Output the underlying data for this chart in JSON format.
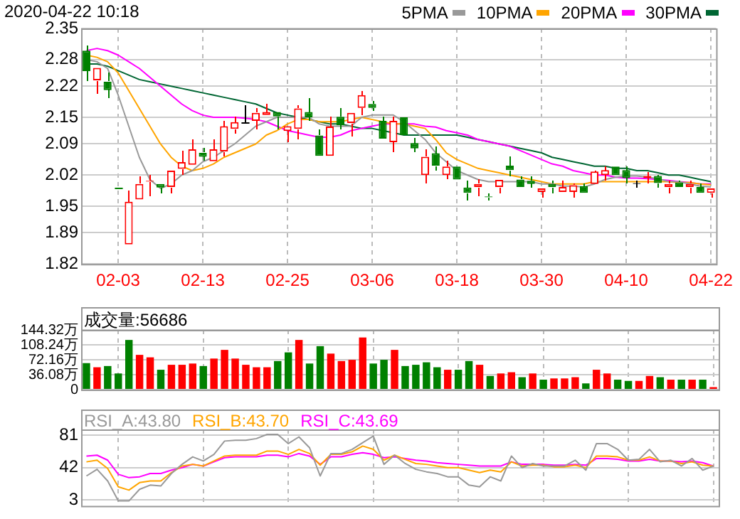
{
  "chart_data": [
    {
      "type": "candlestick",
      "title": "2020-04-22 10:18",
      "categories": [
        null,
        null,
        null,
        "02-03",
        null,
        null,
        null,
        null,
        null,
        null,
        null,
        "02-13",
        null,
        null,
        null,
        null,
        null,
        null,
        null,
        "02-25",
        null,
        null,
        null,
        null,
        null,
        null,
        null,
        "03-06",
        null,
        null,
        null,
        null,
        null,
        null,
        null,
        "03-18",
        null,
        null,
        null,
        null,
        null,
        null,
        null,
        "03-30",
        null,
        null,
        null,
        null,
        null,
        null,
        null,
        "04-10",
        null,
        null,
        null,
        null,
        null,
        null,
        null,
        "04-22"
      ],
      "ohlc": [
        [
          2.3,
          2.31,
          2.233,
          2.254
        ],
        [
          2.233,
          2.261,
          2.203,
          2.261
        ],
        [
          2.23,
          2.25,
          2.193,
          2.211
        ],
        [
          1.992,
          1.992,
          1.992,
          1.992
        ],
        [
          1.864,
          1.985,
          1.864,
          1.96
        ],
        [
          1.965,
          2.018,
          1.965,
          2.0
        ],
        [
          2.005,
          2.02,
          1.973,
          2.007
        ],
        [
          2.0,
          2.0,
          1.98,
          1.992
        ],
        [
          1.993,
          2.03,
          1.98,
          2.03
        ],
        [
          2.034,
          2.076,
          2.02,
          2.049
        ],
        [
          2.043,
          2.1,
          2.043,
          2.078
        ],
        [
          2.07,
          2.08,
          2.051,
          2.061
        ],
        [
          2.051,
          2.1,
          2.051,
          2.078
        ],
        [
          2.073,
          2.142,
          2.063,
          2.13
        ],
        [
          2.124,
          2.152,
          2.112,
          2.139
        ],
        [
          2.139,
          2.178,
          2.139,
          2.139
        ],
        [
          2.142,
          2.17,
          2.124,
          2.16
        ],
        [
          2.155,
          2.18,
          2.155,
          2.162
        ],
        [
          2.162,
          2.162,
          2.122,
          2.152
        ],
        [
          2.119,
          2.13,
          2.094,
          2.13
        ],
        [
          2.124,
          2.178,
          2.1,
          2.17
        ],
        [
          2.162,
          2.193,
          2.142,
          2.15
        ],
        [
          2.109,
          2.124,
          2.063,
          2.063
        ],
        [
          2.063,
          2.15,
          2.063,
          2.129
        ],
        [
          2.151,
          2.17,
          2.122,
          2.132
        ],
        [
          2.137,
          2.16,
          2.107,
          2.16
        ],
        [
          2.171,
          2.21,
          2.155,
          2.2
        ],
        [
          2.18,
          2.188,
          2.163,
          2.171
        ],
        [
          2.142,
          2.15,
          2.102,
          2.102
        ],
        [
          2.094,
          2.15,
          2.071,
          2.142
        ],
        [
          2.15,
          2.152,
          2.11,
          2.11
        ],
        [
          2.092,
          2.102,
          2.071,
          2.08
        ],
        [
          2.02,
          2.078,
          2.002,
          2.061
        ],
        [
          2.069,
          2.085,
          2.03,
          2.041
        ],
        [
          2.02,
          2.051,
          2.01,
          2.039
        ],
        [
          2.039,
          2.04,
          2.01,
          2.01
        ],
        [
          1.992,
          2.009,
          1.963,
          1.98
        ],
        [
          1.993,
          2.01,
          1.973,
          2.0
        ],
        [
          1.972,
          1.98,
          1.963,
          1.97
        ],
        [
          1.993,
          2.009,
          1.98,
          2.009
        ],
        [
          2.041,
          2.061,
          2.016,
          2.031
        ],
        [
          2.01,
          2.018,
          1.993,
          1.993
        ],
        [
          2.007,
          2.018,
          1.993,
          2.0
        ],
        [
          1.982,
          1.993,
          1.97,
          1.99
        ],
        [
          2.0,
          2.009,
          1.98,
          1.993
        ],
        [
          1.982,
          2.009,
          1.982,
          1.993
        ],
        [
          1.982,
          2.0,
          1.97,
          1.997
        ],
        [
          1.995,
          2.0,
          1.98,
          1.98
        ],
        [
          2.0,
          2.03,
          2.0,
          2.028
        ],
        [
          2.02,
          2.039,
          2.009,
          2.031
        ],
        [
          2.039,
          2.041,
          2.02,
          2.02
        ],
        [
          2.031,
          2.039,
          2.002,
          2.013
        ],
        [
          2.002,
          2.009,
          1.993,
          2.0
        ],
        [
          2.013,
          2.028,
          2.0,
          2.018
        ],
        [
          2.018,
          2.02,
          1.992,
          2.002
        ],
        [
          1.993,
          2.009,
          1.98,
          2.0
        ],
        [
          2.003,
          2.009,
          1.993,
          1.993
        ],
        [
          1.993,
          2.009,
          1.98,
          2.0
        ],
        [
          1.993,
          2.0,
          1.98,
          1.98
        ],
        [
          1.98,
          1.993,
          1.97,
          1.99
        ]
      ],
      "colors": [
        "#008000",
        "#ff0000",
        "#008000",
        "#008000",
        "#ff0000",
        "#ff0000",
        "#ff0000",
        "#008000",
        "#ff0000",
        "#ff0000",
        "#ff0000",
        "#008000",
        "#ff0000",
        "#ff0000",
        "#ff0000",
        "#000000",
        "#ff0000",
        "#ff0000",
        "#008000",
        "#ff0000",
        "#ff0000",
        "#008000",
        "#008000",
        "#ff0000",
        "#008000",
        "#ff0000",
        "#ff0000",
        "#008000",
        "#008000",
        "#ff0000",
        "#008000",
        "#008000",
        "#ff0000",
        "#008000",
        "#ff0000",
        "#008000",
        "#008000",
        "#ff0000",
        "#008000",
        "#ff0000",
        "#008000",
        "#008000",
        "#008000",
        "#ff0000",
        "#008000",
        "#ff0000",
        "#ff0000",
        "#008000",
        "#ff0000",
        "#ff0000",
        "#008000",
        "#008000",
        "#000000",
        "#ff0000",
        "#008000",
        "#ff0000",
        "#008000",
        "#ff0000",
        "#008000",
        "#ff0000"
      ],
      "series": [
        {
          "name": "5PMA",
          "type": "line",
          "color": "#999999",
          "values": [
            2.28,
            2.275,
            2.26,
            2.2,
            2.13,
            2.06,
            2.01,
            1.99,
            2.0,
            2.02,
            2.03,
            2.05,
            2.06,
            2.075,
            2.09,
            2.11,
            2.13,
            2.14,
            2.15,
            2.15,
            2.15,
            2.15,
            2.135,
            2.13,
            2.13,
            2.13,
            2.15,
            2.155,
            2.155,
            2.155,
            2.14,
            2.12,
            2.1,
            2.07,
            2.05,
            2.03,
            2.02,
            2.01,
            2.005,
            2.005,
            2.005,
            2.005,
            2.005,
            2.0,
            2.0,
            1.995,
            1.995,
            1.993,
            2.0,
            2.01,
            2.015,
            2.018,
            2.018,
            2.015,
            2.012,
            2.005,
            2.005,
            2.0,
            1.995,
            1.993
          ]
        },
        {
          "name": "10PMA",
          "type": "line",
          "color": "#ffa500",
          "values": [
            2.29,
            2.285,
            2.275,
            2.25,
            2.21,
            2.17,
            2.13,
            2.09,
            2.06,
            2.04,
            2.03,
            2.035,
            2.045,
            2.06,
            2.07,
            2.08,
            2.09,
            2.11,
            2.12,
            2.135,
            2.145,
            2.145,
            2.14,
            2.14,
            2.14,
            2.145,
            2.15,
            2.145,
            2.14,
            2.135,
            2.135,
            2.13,
            2.125,
            2.1,
            2.07,
            2.055,
            2.045,
            2.035,
            2.03,
            2.025,
            2.02,
            2.015,
            2.01,
            2.005,
            2.0,
            2.0,
            2.0,
            2.0,
            2.005,
            2.005,
            2.005,
            2.005,
            2.005,
            2.005,
            2.005,
            2.005,
            2.003,
            2.003,
            2.0,
            1.998
          ]
        },
        {
          "name": "20PMA",
          "type": "line",
          "color": "#ff00ff",
          "values": [
            2.3,
            2.305,
            2.3,
            2.29,
            2.275,
            2.26,
            2.24,
            2.22,
            2.2,
            2.18,
            2.165,
            2.155,
            2.15,
            2.15,
            2.15,
            2.148,
            2.145,
            2.14,
            2.13,
            2.12,
            2.115,
            2.11,
            2.105,
            2.105,
            2.11,
            2.12,
            2.125,
            2.13,
            2.135,
            2.135,
            2.135,
            2.135,
            2.13,
            2.128,
            2.12,
            2.115,
            2.11,
            2.1,
            2.095,
            2.09,
            2.085,
            2.075,
            2.065,
            2.055,
            2.045,
            2.04,
            2.03,
            2.025,
            2.02,
            2.02,
            2.015,
            2.013,
            2.013,
            2.012,
            2.01,
            2.008,
            2.005,
            2.003,
            2.0,
            2.0
          ]
        },
        {
          "name": "30PMA",
          "type": "line",
          "color": "#006633",
          "values": [
            2.27,
            2.27,
            2.265,
            2.255,
            2.245,
            2.235,
            2.23,
            2.225,
            2.22,
            2.215,
            2.21,
            2.205,
            2.2,
            2.195,
            2.19,
            2.185,
            2.18,
            2.17,
            2.16,
            2.155,
            2.15,
            2.145,
            2.14,
            2.135,
            2.135,
            2.13,
            2.125,
            2.125,
            2.12,
            2.115,
            2.11,
            2.11,
            2.11,
            2.11,
            2.11,
            2.11,
            2.105,
            2.1,
            2.095,
            2.09,
            2.085,
            2.08,
            2.075,
            2.07,
            2.06,
            2.055,
            2.05,
            2.045,
            2.04,
            2.04,
            2.035,
            2.035,
            2.03,
            2.03,
            2.025,
            2.02,
            2.02,
            2.015,
            2.01,
            2.005
          ]
        }
      ],
      "ylim": [
        1.82,
        2.35
      ],
      "yticks": [
        1.82,
        1.89,
        1.95,
        2.02,
        2.09,
        2.15,
        2.22,
        2.28,
        2.35
      ],
      "grid": true,
      "legend": "top right",
      "marker": "none"
    },
    {
      "type": "bar",
      "annotations": [
        "成交量:56686"
      ],
      "categories": [
        null,
        null,
        null,
        null,
        null,
        null,
        null,
        null,
        null,
        null,
        null,
        null,
        null,
        null,
        null,
        null,
        null,
        null,
        null,
        null,
        null,
        null,
        null,
        null,
        null,
        null,
        null,
        null,
        null,
        null,
        null,
        null,
        null,
        null,
        null,
        null,
        null,
        null,
        null,
        null,
        null,
        null,
        null,
        null,
        null,
        null,
        null,
        null,
        null,
        null,
        null,
        null,
        null,
        null,
        null,
        null,
        null,
        null,
        null,
        null
      ],
      "values": [
        64,
        54,
        57,
        39,
        120,
        84,
        78,
        48,
        60,
        60,
        63,
        57,
        75,
        96,
        75,
        60,
        54,
        54,
        69,
        90,
        120,
        63,
        105,
        87,
        69,
        72,
        126,
        63,
        72,
        96,
        57,
        60,
        66,
        54,
        48,
        48,
        69,
        60,
        33,
        39,
        42,
        30,
        39,
        24,
        27,
        27,
        30,
        15,
        48,
        39,
        24,
        21,
        21,
        33,
        30,
        24,
        24,
        24,
        24,
        6
      ],
      "colors": [
        "#008000",
        "#ff0000",
        "#008000",
        "#008000",
        "#008000",
        "#ff0000",
        "#ff0000",
        "#008000",
        "#ff0000",
        "#ff0000",
        "#ff0000",
        "#008000",
        "#ff0000",
        "#ff0000",
        "#ff0000",
        "#ff0000",
        "#ff0000",
        "#ff0000",
        "#008000",
        "#008000",
        "#ff0000",
        "#008000",
        "#008000",
        "#ff0000",
        "#ff0000",
        "#ff0000",
        "#ff0000",
        "#008000",
        "#008000",
        "#ff0000",
        "#008000",
        "#008000",
        "#008000",
        "#008000",
        "#ff0000",
        "#008000",
        "#008000",
        "#ff0000",
        "#008000",
        "#ff0000",
        "#ff0000",
        "#008000",
        "#ff0000",
        "#008000",
        "#ff0000",
        "#ff0000",
        "#ff0000",
        "#008000",
        "#ff0000",
        "#ff0000",
        "#008000",
        "#008000",
        "#ff0000",
        "#ff0000",
        "#008000",
        "#ff0000",
        "#008000",
        "#ff0000",
        "#008000",
        "#ff0000"
      ],
      "ylim": [
        0,
        144.32
      ],
      "yticks": [
        0,
        {
          "value": 36.08,
          "label": "36.08万"
        },
        {
          "value": 72.16,
          "label": "72.16万"
        },
        {
          "value": 108.24,
          "label": "108.24万"
        },
        {
          "value": 144.32,
          "label": "144.32万"
        }
      ],
      "grid": true,
      "tick_labels": "y"
    },
    {
      "type": "line",
      "categories": [
        null,
        null,
        null,
        null,
        null,
        null,
        null,
        null,
        null,
        null,
        null,
        null,
        null,
        null,
        null,
        null,
        null,
        null,
        null,
        null,
        null,
        null,
        null,
        null,
        null,
        null,
        null,
        null,
        null,
        null,
        null,
        null,
        null,
        null,
        null,
        null,
        null,
        null,
        null,
        null,
        null,
        null,
        null,
        null,
        null,
        null,
        null,
        null,
        null,
        null,
        null,
        null,
        null,
        null,
        null,
        null,
        null,
        null,
        null,
        null
      ],
      "series": [
        {
          "name": "RSI_A:43.80",
          "color": "#999999",
          "values": [
            32,
            40,
            26,
            2,
            2,
            16,
            21,
            20,
            35,
            46,
            55,
            50,
            58,
            74,
            75,
            75,
            77,
            82,
            82,
            71,
            79,
            66,
            32,
            59,
            59,
            64,
            72,
            80,
            46,
            57,
            47,
            40,
            37,
            35,
            31,
            31,
            21,
            19,
            31,
            26,
            56,
            42,
            47,
            44,
            44,
            44,
            51,
            39,
            71,
            71,
            64,
            51,
            52,
            64,
            49,
            51,
            44,
            53,
            39,
            44
          ]
        },
        {
          "name": "RSI_B:43.70",
          "color": "#ffa500",
          "values": [
            49,
            51,
            41,
            19,
            15,
            24,
            26,
            26,
            36,
            44,
            46,
            44,
            50,
            56,
            57,
            57,
            57,
            62,
            62,
            58,
            64,
            59,
            45,
            58,
            58,
            61,
            68,
            64,
            51,
            57,
            52,
            47,
            46,
            44,
            42,
            42,
            39,
            36,
            39,
            37,
            49,
            44,
            45,
            45,
            43,
            43,
            45,
            42,
            56,
            56,
            55,
            51,
            51,
            55,
            50,
            50,
            47,
            49,
            45,
            44
          ]
        },
        {
          "name": "RSI_C:43.69",
          "color": "#ff00ff",
          "values": [
            56,
            57,
            51,
            34,
            30,
            31,
            35,
            35,
            39,
            42,
            46,
            44,
            49,
            54,
            55,
            55,
            55,
            57,
            57,
            55,
            59,
            56,
            46,
            55,
            55,
            58,
            60,
            58,
            54,
            55,
            53,
            51,
            50,
            48,
            47,
            46,
            45,
            44,
            44,
            44,
            49,
            46,
            46,
            46,
            45,
            45,
            46,
            45,
            53,
            53,
            52,
            50,
            50,
            52,
            50,
            50,
            49,
            50,
            48,
            44
          ]
        }
      ],
      "ylim": [
        -4,
        88
      ],
      "yticks": [
        3,
        42,
        81
      ],
      "grid": true,
      "legend": "top left",
      "marker": "none",
      "tick_labels": "y"
    }
  ]
}
